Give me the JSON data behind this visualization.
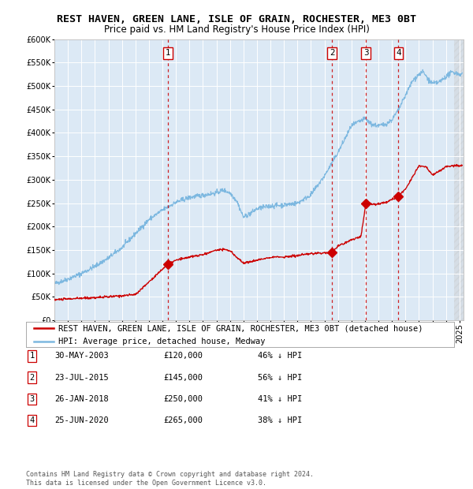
{
  "title": "REST HAVEN, GREEN LANE, ISLE OF GRAIN, ROCHESTER, ME3 0BT",
  "subtitle": "Price paid vs. HM Land Registry's House Price Index (HPI)",
  "ylim": [
    0,
    600000
  ],
  "yticks": [
    0,
    50000,
    100000,
    150000,
    200000,
    250000,
    300000,
    350000,
    400000,
    450000,
    500000,
    550000,
    600000
  ],
  "xlim_start": 1995.0,
  "xlim_end": 2025.3,
  "plot_bg_color": "#dce9f5",
  "hpi_color": "#7db8e0",
  "sale_color": "#cc0000",
  "sale_dates": [
    2003.41,
    2015.56,
    2018.07,
    2020.48
  ],
  "sale_prices": [
    120000,
    145000,
    250000,
    265000
  ],
  "sale_labels": [
    "1",
    "2",
    "3",
    "4"
  ],
  "legend_sale_label": "REST HAVEN, GREEN LANE, ISLE OF GRAIN, ROCHESTER, ME3 0BT (detached house)",
  "legend_hpi_label": "HPI: Average price, detached house, Medway",
  "table_entries": [
    {
      "label": "1",
      "date": "30-MAY-2003",
      "price": "£120,000",
      "hpi": "46% ↓ HPI"
    },
    {
      "label": "2",
      "date": "23-JUL-2015",
      "price": "£145,000",
      "hpi": "56% ↓ HPI"
    },
    {
      "label": "3",
      "date": "26-JAN-2018",
      "price": "£250,000",
      "hpi": "41% ↓ HPI"
    },
    {
      "label": "4",
      "date": "25-JUN-2020",
      "price": "£265,000",
      "hpi": "38% ↓ HPI"
    }
  ],
  "footer": "Contains HM Land Registry data © Crown copyright and database right 2024.\nThis data is licensed under the Open Government Licence v3.0.",
  "title_fontsize": 9.5,
  "subtitle_fontsize": 8.5,
  "tick_fontsize": 7,
  "legend_fontsize": 7.5,
  "table_fontsize": 7.5,
  "footer_fontsize": 6.0,
  "hpi_keypoints_x": [
    1995,
    1996,
    1997,
    1998,
    1999,
    2000,
    2001,
    2002,
    2003,
    2004,
    2005,
    2006,
    2007,
    2007.5,
    2008,
    2008.5,
    2009,
    2009.5,
    2010,
    2011,
    2012,
    2013,
    2014,
    2015,
    2016,
    2017,
    2017.5,
    2018,
    2018.5,
    2019,
    2019.5,
    2020,
    2020.5,
    2021,
    2021.5,
    2022,
    2022.3,
    2022.8,
    2023,
    2023.5,
    2024,
    2024.5,
    2025
  ],
  "hpi_keypoints_y": [
    78000,
    88000,
    100000,
    115000,
    133000,
    155000,
    185000,
    215000,
    235000,
    252000,
    262000,
    267000,
    272000,
    278000,
    272000,
    255000,
    220000,
    228000,
    238000,
    244000,
    246000,
    250000,
    268000,
    308000,
    358000,
    415000,
    423000,
    430000,
    418000,
    415000,
    418000,
    428000,
    450000,
    480000,
    510000,
    525000,
    530000,
    510000,
    505000,
    508000,
    520000,
    530000,
    525000
  ],
  "red_keypoints_x": [
    1995,
    1997,
    1999,
    2001,
    2003.41,
    2004,
    2005,
    2006,
    2007,
    2007.5,
    2008,
    2008.5,
    2009,
    2010,
    2011,
    2012,
    2013,
    2014,
    2015,
    2015.56,
    2016,
    2016.5,
    2017,
    2017.3,
    2017.7,
    2018.07,
    2018.5,
    2019,
    2019.5,
    2020,
    2020.48,
    2021,
    2021.5,
    2022,
    2022.5,
    2023,
    2023.5,
    2024,
    2024.5,
    2025
  ],
  "red_keypoints_y": [
    44000,
    47000,
    50000,
    55000,
    120000,
    128000,
    135000,
    140000,
    150000,
    152000,
    148000,
    135000,
    122000,
    128000,
    135000,
    135000,
    138000,
    142000,
    144000,
    145000,
    158000,
    165000,
    172000,
    175000,
    178000,
    250000,
    248000,
    248000,
    252000,
    258000,
    265000,
    280000,
    305000,
    330000,
    328000,
    310000,
    318000,
    328000,
    330000,
    330000
  ]
}
